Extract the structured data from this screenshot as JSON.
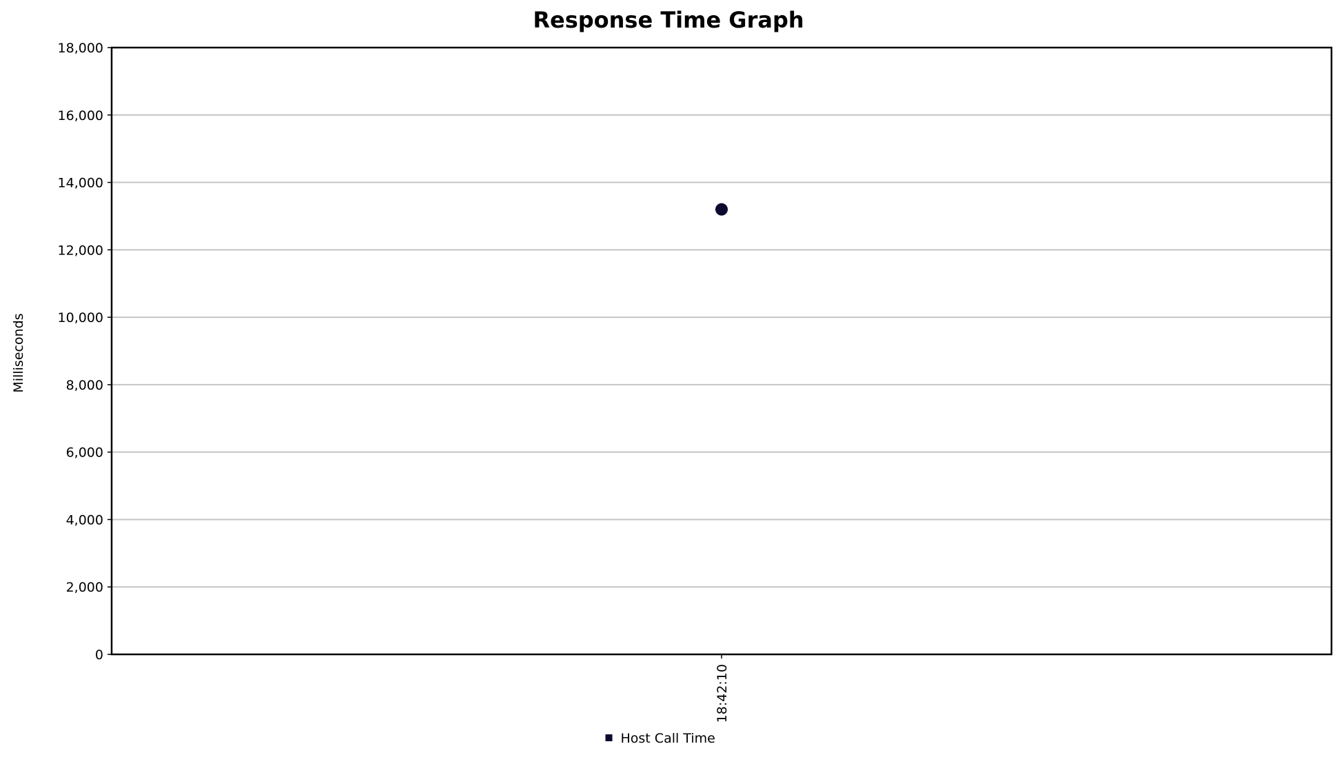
{
  "chart_data": {
    "type": "scatter",
    "title": "Response Time Graph",
    "xlabel": "",
    "ylabel": "Milliseconds",
    "categories": [
      "18:42:10"
    ],
    "ylim": [
      0,
      18000
    ],
    "yticks": [
      0,
      2000,
      4000,
      6000,
      8000,
      10000,
      12000,
      14000,
      16000,
      18000
    ],
    "ytick_labels": [
      "0",
      "2,000",
      "4,000",
      "6,000",
      "8,000",
      "10,000",
      "12,000",
      "14,000",
      "16,000",
      "18,000"
    ],
    "grid": true,
    "legend_position": "bottom-center",
    "series": [
      {
        "name": "Host Call Time",
        "color": "#0c0a2e",
        "points": [
          {
            "x": "18:42:10",
            "y": 13200
          }
        ]
      }
    ]
  }
}
